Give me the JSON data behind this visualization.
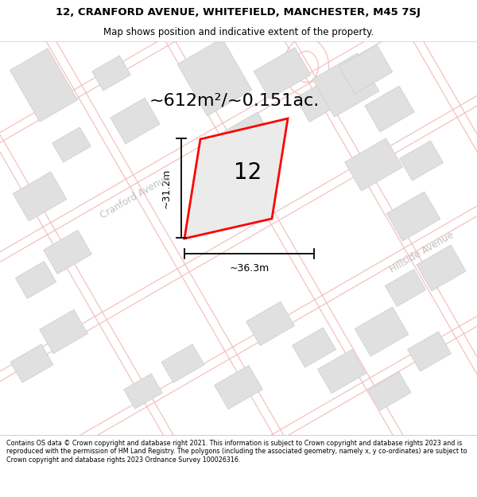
{
  "title_line1": "12, CRANFORD AVENUE, WHITEFIELD, MANCHESTER, M45 7SJ",
  "title_line2": "Map shows position and indicative extent of the property.",
  "area_text": "~612m²/~0.151ac.",
  "number_label": "12",
  "dim_width": "~36.3m",
  "dim_height": "~31.2m",
  "street_label_left": "Cranford Avenue",
  "street_label_right": "Hillside Avenue",
  "footer_text": "Contains OS data © Crown copyright and database right 2021. This information is subject to Crown copyright and database rights 2023 and is reproduced with the permission of HM Land Registry. The polygons (including the associated geometry, namely x, y co-ordinates) are subject to Crown copyright and database rights 2023 Ordnance Survey 100026316.",
  "map_bg": "#ffffff",
  "plot_color_fill": "#e8e8e8",
  "plot_color_stroke": "#ff0000",
  "road_color": "#f5c0c0",
  "building_fill": "#e0e0e0",
  "building_edge": "#cccccc",
  "title_bg": "#ffffff",
  "footer_bg": "#ffffff",
  "street_label_color": "#c0c0c0",
  "title_fontsize": 9.5,
  "subtitle_fontsize": 8.5,
  "area_fontsize": 16,
  "number_fontsize": 20,
  "dim_fontsize": 9,
  "street_fontsize": 8.5,
  "footer_fontsize": 5.8
}
